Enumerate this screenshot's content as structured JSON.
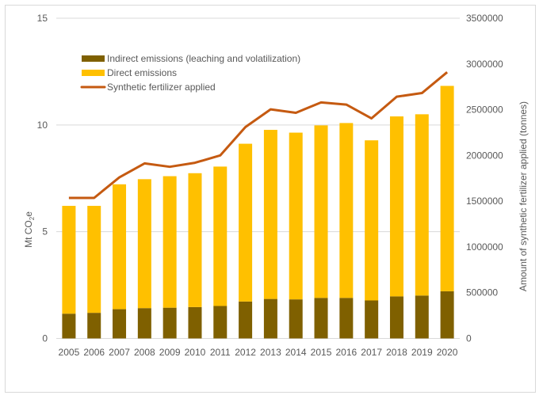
{
  "chart_data": {
    "type": "bar",
    "stacked": true,
    "categories": [
      "2005",
      "2006",
      "2007",
      "2008",
      "2009",
      "2010",
      "2011",
      "2012",
      "2013",
      "2014",
      "2015",
      "2016",
      "2017",
      "2018",
      "2019",
      "2020"
    ],
    "series": [
      {
        "name": "Indirect emissions (leaching and volatilization)",
        "kind": "bar",
        "axis": "left",
        "color": "#7F6000",
        "values": [
          1.16,
          1.2,
          1.37,
          1.42,
          1.44,
          1.47,
          1.52,
          1.73,
          1.85,
          1.83,
          1.9,
          1.9,
          1.78,
          1.97,
          2.01,
          2.21
        ]
      },
      {
        "name": "Direct emissions",
        "kind": "bar",
        "axis": "left",
        "color": "#FFC000",
        "values": [
          5.05,
          5.01,
          5.85,
          6.04,
          6.16,
          6.27,
          6.53,
          7.39,
          7.92,
          7.81,
          8.08,
          8.19,
          7.5,
          8.43,
          8.49,
          9.62
        ]
      },
      {
        "name": "Synthetic fertilizer applied",
        "kind": "line",
        "axis": "right",
        "color": "#C55A11",
        "values": [
          1536000,
          1536000,
          1760000,
          1913000,
          1876000,
          1920000,
          2000000,
          2310000,
          2504000,
          2466000,
          2580000,
          2556000,
          2405000,
          2642000,
          2682000,
          2910000
        ]
      }
    ],
    "ylabel": "Mt CO2e",
    "ylabel_parts": {
      "main": "Mt CO",
      "sub": "2",
      "end": "e"
    },
    "y2label": "Amount of synthetic fertilizer applied (tonnes)",
    "ylim": [
      0,
      15
    ],
    "y2lim": [
      0,
      3500000
    ],
    "yticks": [
      "0",
      "5",
      "10",
      "15"
    ],
    "y2ticks": [
      "0",
      "500000",
      "1000000",
      "1500000",
      "2000000",
      "2500000",
      "3000000",
      "3500000"
    ],
    "grid": true,
    "legend_placement": "top-left"
  }
}
